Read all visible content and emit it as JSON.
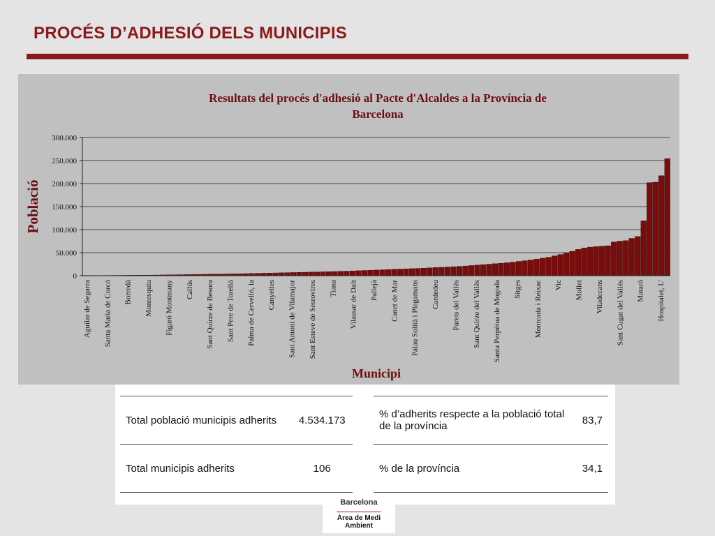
{
  "slide": {
    "title": "PROCÉS D’ADHESIÓ DELS MUNICIPIS"
  },
  "colors": {
    "accent": "#8b1a1a",
    "bar": "#7a0c0c",
    "panel": "#c0c0c0"
  },
  "chart_data": {
    "type": "bar",
    "title": "Resultats del procés d'adhesió al Pacte d'Alcaldes a la Província de Barcelona",
    "xlabel": "Municipi",
    "ylabel": "Població",
    "ylim": [
      0,
      300000
    ],
    "yticks": [
      "0",
      "50.000",
      "100.000",
      "150.000",
      "200.000",
      "250.000",
      "300.000"
    ],
    "grid": true,
    "legend": "none",
    "visible_category_labels": [
      "Aguilar de Segarra",
      "Santa Maria de Corcó",
      "Borredà",
      "Montesquiu",
      "Figaró Montmany",
      "Callús",
      "Sant Quirze de Besora",
      "Sant Pere de Torelló",
      "Palma de Cervelló, la",
      "Canyelles",
      "Sant Antoni de Vilamajor",
      "Sant Esteve de Sesrovires",
      "Tiana",
      "Vilassar de Dalt",
      "Pallejà",
      "Canet de Mar",
      "Palau Solità i Plegamans",
      "Cardedeu",
      "Parets del Vallès",
      "Sant Quirze del Vallès",
      "Santa Perpètua de Mogoda",
      "Sitges",
      "Montcada i Reixac",
      "Vic",
      "Mollet",
      "Viladecans",
      "Sant Cugat del Vallès",
      "Mataró",
      "Hospitalet, L'"
    ],
    "values": [
      200,
      300,
      400,
      500,
      600,
      700,
      800,
      900,
      1000,
      1100,
      1200,
      1300,
      1400,
      1600,
      1800,
      2000,
      2200,
      2400,
      2600,
      2800,
      3000,
      3200,
      3400,
      3600,
      3800,
      4000,
      4200,
      4500,
      4800,
      5100,
      5400,
      5700,
      6000,
      6300,
      6600,
      6900,
      7200,
      7500,
      7800,
      8100,
      8400,
      8700,
      9000,
      9400,
      9800,
      10300,
      10800,
      11300,
      11800,
      12300,
      12800,
      13300,
      13800,
      14300,
      14800,
      15300,
      15800,
      16400,
      17000,
      17600,
      18200,
      18800,
      19500,
      20200,
      21000,
      22000,
      23000,
      24000,
      25000,
      26000,
      27000,
      28000,
      29500,
      31000,
      32500,
      34000,
      36000,
      38000,
      40000,
      43000,
      46000,
      49000,
      53000,
      57000,
      60000,
      62000,
      63000,
      64000,
      65000,
      73000,
      75000,
      76000,
      81000,
      85000,
      119000,
      202000,
      203000,
      217000,
      254000
    ]
  },
  "stats": {
    "left": [
      {
        "label": "Total població municipis adherits",
        "value": "4.534.173"
      },
      {
        "label": "Total municipis adherits",
        "value": "106"
      }
    ],
    "right": [
      {
        "label": "% d’adherits respecte a la població total de la província",
        "value": "83,7"
      },
      {
        "label": "% de la província",
        "value": "34,1"
      }
    ]
  },
  "footer": {
    "name": "Barcelona",
    "department": "Àrea de Medi Ambient"
  }
}
